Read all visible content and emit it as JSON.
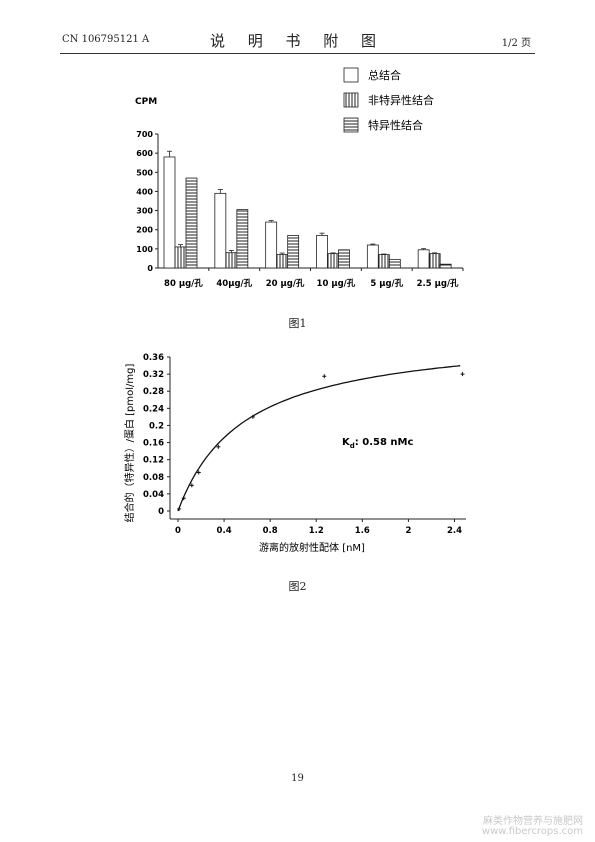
{
  "header": {
    "doc_number": "CN 106795121 A",
    "section_title": "说 明 书 附 图",
    "page_indicator": "1/2 页"
  },
  "figure1": {
    "caption": "图1",
    "chart_data": {
      "type": "bar",
      "ylabel": "CPM",
      "ylim": [
        0,
        700
      ],
      "yticks": [
        "0",
        "100",
        "200",
        "300",
        "400",
        "500",
        "600",
        "700"
      ],
      "categories": [
        "80 μg/孔",
        "40μg/孔",
        "20 μg/孔",
        "10 μg/孔",
        "5 μg/孔",
        "2.5 μg/孔"
      ],
      "series": [
        {
          "name": "总结合",
          "pattern": "open",
          "values": [
            580,
            390,
            240,
            170,
            120,
            95
          ],
          "errors": [
            30,
            20,
            8,
            12,
            5,
            6
          ]
        },
        {
          "name": "非特异性结合",
          "pattern": "vertical",
          "values": [
            110,
            80,
            70,
            75,
            70,
            75
          ],
          "errors": [
            12,
            12,
            8,
            4,
            3,
            4
          ]
        },
        {
          "name": "特异性结合",
          "pattern": "horizontal",
          "values": [
            470,
            305,
            170,
            95,
            45,
            20
          ],
          "errors": [
            0,
            0,
            0,
            0,
            0,
            0
          ]
        }
      ],
      "legend_position": "top-right"
    }
  },
  "figure2": {
    "caption": "图2",
    "chart_data": {
      "type": "scatter",
      "xlabel": "游离的放射性配体 [nM]",
      "ylabel": "结合的（特异性）/蛋白 [pmol/mg]",
      "xlim": [
        0,
        2.5
      ],
      "ylim": [
        0,
        0.36
      ],
      "xticks": [
        "0",
        "0.4",
        "0.8",
        "1.2",
        "1.6",
        "2",
        "2.4"
      ],
      "yticks": [
        "0",
        "0.04",
        "0.08",
        "0.12",
        "0.16",
        "0.2",
        "0.24",
        "0.28",
        "0.32",
        "0.36"
      ],
      "points": [
        {
          "x": 0.01,
          "y": 0.005
        },
        {
          "x": 0.05,
          "y": 0.03
        },
        {
          "x": 0.12,
          "y": 0.06
        },
        {
          "x": 0.18,
          "y": 0.09
        },
        {
          "x": 0.35,
          "y": 0.15
        },
        {
          "x": 0.65,
          "y": 0.22
        },
        {
          "x": 1.27,
          "y": 0.315
        },
        {
          "x": 2.47,
          "y": 0.32
        }
      ],
      "fit": {
        "model": "one-site saturation",
        "bmax": 0.42,
        "kd": 0.58
      },
      "annotation": {
        "prefix": "K",
        "subscript": "d",
        "text": ": 0.58 nMc"
      }
    }
  },
  "footer": {
    "page_number": "19",
    "watermark_line1": "麻类作物营养与施肥网",
    "watermark_line2": "www.fibercrops.com"
  }
}
